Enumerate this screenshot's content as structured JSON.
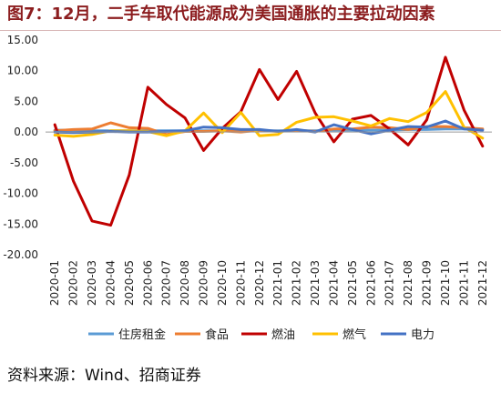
{
  "figure": {
    "title": "图7：12月，二手车取代能源成为美国通胀的主要拉动因素",
    "source": "资料来源：Wind、招商证券"
  },
  "chart_data": {
    "type": "line",
    "title": "图7：12月，二手车取代能源成为美国通胀的主要拉动因素",
    "xlabel": "",
    "ylabel": "",
    "ylim": [
      -20,
      15
    ],
    "yticks": [
      "15.00",
      "10.00",
      "5.00",
      "0.00",
      "-5.00",
      "-10.00",
      "-15.00",
      "-20.00"
    ],
    "grid": false,
    "legend_position": "bottom",
    "categories": [
      "2020-01",
      "2020-02",
      "2020-03",
      "2020-04",
      "2020-05",
      "2020-06",
      "2020-07",
      "2020-08",
      "2020-09",
      "2020-10",
      "2020-11",
      "2020-12",
      "2021-01",
      "2021-02",
      "2021-03",
      "2021-04",
      "2021-05",
      "2021-06",
      "2021-07",
      "2021-08",
      "2021-09",
      "2021-10",
      "2021-11",
      "2021-12"
    ],
    "series": [
      {
        "name": "住房租金",
        "color": "#5b9bd5",
        "values": [
          0.3,
          0.3,
          0.2,
          0.2,
          0.2,
          0.2,
          0.2,
          0.2,
          0.2,
          0.2,
          0.2,
          0.2,
          0.2,
          0.2,
          0.2,
          0.3,
          0.3,
          0.3,
          0.3,
          0.4,
          0.4,
          0.5,
          0.5,
          0.4
        ]
      },
      {
        "name": "食品",
        "color": "#ed7d31",
        "values": [
          0.2,
          0.4,
          0.5,
          1.5,
          0.7,
          0.6,
          -0.4,
          0.1,
          0.1,
          0.2,
          0.0,
          0.3,
          0.1,
          0.3,
          0.1,
          0.5,
          0.5,
          0.8,
          0.7,
          0.4,
          0.9,
          0.9,
          0.7,
          0.5
        ]
      },
      {
        "name": "燃油",
        "color": "#c00000",
        "values": [
          1.2,
          -8.0,
          -14.5,
          -15.2,
          -7.0,
          7.3,
          4.5,
          2.3,
          -3.0,
          0.6,
          3.3,
          10.2,
          5.3,
          9.9,
          3.1,
          -1.6,
          2.1,
          2.7,
          0.5,
          -2.1,
          2.0,
          12.2,
          3.6,
          -2.3
        ]
      },
      {
        "name": "燃气",
        "color": "#ffc000",
        "values": [
          -0.5,
          -0.7,
          -0.4,
          0.2,
          0.2,
          0.1,
          -0.6,
          0.2,
          3.1,
          -0.1,
          3.2,
          -0.6,
          -0.4,
          1.6,
          2.4,
          2.5,
          1.8,
          1.0,
          2.2,
          1.7,
          3.2,
          6.6,
          0.8,
          -1.0
        ]
      },
      {
        "name": "电力",
        "color": "#4472c4",
        "values": [
          0.0,
          -0.1,
          0.0,
          0.1,
          0.0,
          0.0,
          0.1,
          0.2,
          0.8,
          0.7,
          0.4,
          0.4,
          0.1,
          0.4,
          0.0,
          1.2,
          0.4,
          -0.3,
          0.3,
          0.9,
          0.8,
          1.8,
          0.5,
          0.3
        ]
      }
    ]
  }
}
